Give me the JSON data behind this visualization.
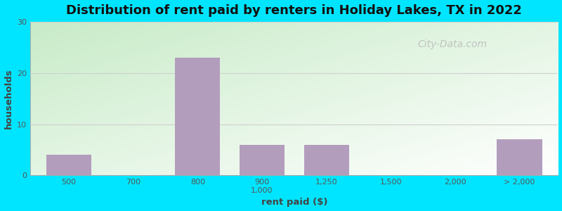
{
  "title": "Distribution of rent paid by renters in Holiday Lakes, TX in 2022",
  "xlabel": "rent paid ($)",
  "ylabel": "households",
  "bar_labels": [
    "500",
    "700",
    "800",
    "900\n1,000",
    "1,250",
    "1,500",
    "2,000",
    "> 2,000"
  ],
  "bar_positions": [
    0,
    1,
    2,
    3,
    4,
    5,
    6,
    7
  ],
  "bar_values": [
    4,
    0,
    23,
    6,
    6,
    0,
    0,
    7
  ],
  "bar_color": "#b39dbd",
  "bar_edgecolor": "#b39dbd",
  "ylim": [
    0,
    30
  ],
  "yticks": [
    0,
    10,
    20,
    30
  ],
  "background_outer": "#00e5ff",
  "grad_color_topleft": "#c8ebc8",
  "grad_color_bottomright": "#f0f5e8",
  "grid_color": "#d0d0d0",
  "title_fontsize": 13,
  "axis_label_fontsize": 9.5,
  "tick_fontsize": 8,
  "watermark_text": "City-Data.com",
  "watermark_color": "#bbbbbb"
}
